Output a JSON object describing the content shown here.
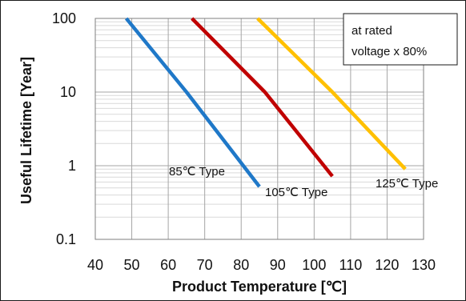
{
  "chart_data": {
    "type": "line",
    "xlabel": "Product Temperature [℃]",
    "ylabel": "Useful Lifetime [Year]",
    "x_scale": "linear",
    "y_scale": "log",
    "xlim": [
      40,
      130
    ],
    "ylim": [
      0.1,
      100
    ],
    "x_ticks": [
      "40",
      "50",
      "60",
      "70",
      "80",
      "90",
      "100",
      "110",
      "120",
      "130"
    ],
    "y_ticks": [
      "0.1",
      "1",
      "10",
      "100"
    ],
    "grid": true,
    "annotation": [
      "at rated",
      "voltage x 80%"
    ],
    "series": [
      {
        "name": "85℃ Type",
        "color": "#1f78c8",
        "points": [
          [
            48.5,
            100
          ],
          [
            65,
            10
          ],
          [
            85,
            0.52
          ]
        ]
      },
      {
        "name": "105℃ Type",
        "color": "#c00000",
        "points": [
          [
            66.5,
            100
          ],
          [
            86.5,
            10
          ],
          [
            105,
            0.72
          ]
        ]
      },
      {
        "name": "125℃ Type",
        "color": "#ffc000",
        "points": [
          [
            84.5,
            100
          ],
          [
            105,
            10
          ],
          [
            125,
            0.9
          ]
        ]
      }
    ]
  }
}
